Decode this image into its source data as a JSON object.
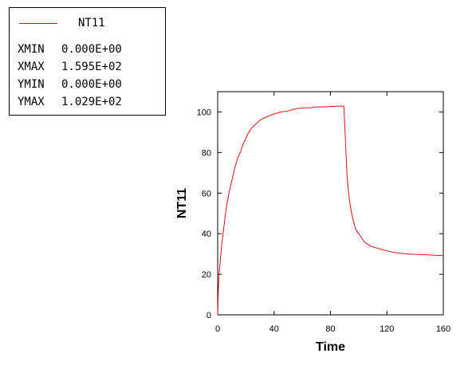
{
  "legend": {
    "series_name": "NT11",
    "stats": [
      {
        "key": "XMIN",
        "value": "0.000E+00"
      },
      {
        "key": "XMAX",
        "value": "1.595E+02"
      },
      {
        "key": "YMIN",
        "value": "0.000E+00"
      },
      {
        "key": "YMAX",
        "value": "1.029E+02"
      }
    ]
  },
  "colors": {
    "series": "#dd1111",
    "axis": "#000000"
  },
  "chart_data": {
    "type": "line",
    "xlabel": "Time",
    "ylabel": "NT11",
    "xlim": [
      0,
      160
    ],
    "ylim": [
      0,
      110
    ],
    "x_ticks": [
      0,
      40,
      80,
      120,
      160
    ],
    "y_ticks": [
      0,
      20,
      40,
      60,
      80,
      100
    ],
    "grid": false,
    "legend_position": "top-left",
    "series": [
      {
        "name": "NT11",
        "x": [
          0,
          0.5,
          1,
          2,
          3,
          4,
          5,
          6,
          7,
          8,
          10,
          12,
          14,
          16,
          18,
          20,
          22,
          24,
          27,
          30,
          33,
          36,
          40,
          45,
          50,
          55,
          60,
          65,
          70,
          75,
          80,
          85,
          89.5,
          90,
          90.5,
          91,
          91.5,
          92,
          93,
          94,
          95,
          96,
          97,
          98,
          100,
          102,
          104,
          106,
          108,
          110,
          115,
          120,
          125,
          130,
          135,
          140,
          145,
          150,
          155,
          159.5
        ],
        "y": [
          0,
          12,
          20,
          28,
          35,
          41,
          47,
          52,
          56,
          60,
          66,
          72,
          77,
          80,
          84,
          87,
          90,
          92,
          94,
          96,
          97,
          98,
          99,
          100,
          100.5,
          101.5,
          102,
          102,
          102.5,
          102.5,
          102.7,
          102.9,
          102.9,
          95,
          88,
          80,
          72,
          66,
          59,
          54,
          50,
          47,
          44,
          42,
          40,
          38,
          36,
          35,
          34,
          33.5,
          32.5,
          31.5,
          30.8,
          30.3,
          30,
          29.8,
          29.7,
          29.5,
          29.3,
          29.2
        ]
      }
    ]
  }
}
